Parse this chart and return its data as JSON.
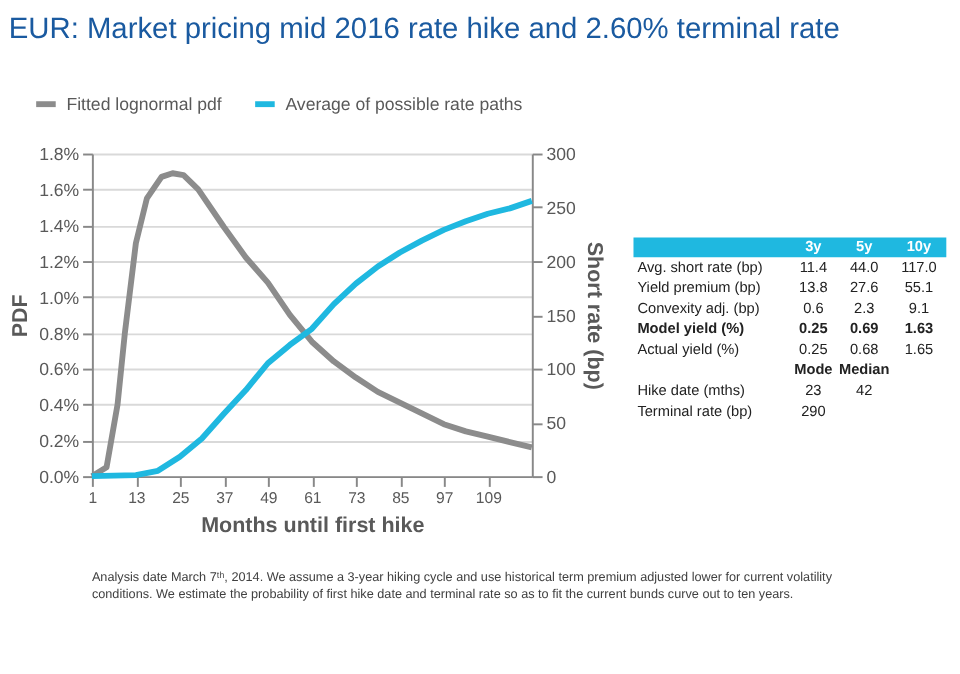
{
  "chart_data": {
    "type": "line",
    "title": "EUR: Market pricing mid 2016 rate hike and 2.60% terminal rate",
    "xlabel": "Months until first hike",
    "ylabel": "PDF",
    "y2label": "Short rate (bp)",
    "series": [
      {
        "name": "Fitted lognormal pdf",
        "color": "#8c8c8c",
        "x": [
          1,
          5,
          8,
          10,
          13,
          16,
          20,
          23,
          26,
          30,
          37,
          43,
          49,
          55,
          61,
          67,
          73,
          79,
          85,
          91,
          97,
          103,
          109,
          115,
          121
        ],
        "values": [
          0,
          0.05,
          0.4,
          0.8,
          1.3,
          1.55,
          1.67,
          1.69,
          1.68,
          1.6,
          1.39,
          1.22,
          1.08,
          0.9,
          0.75,
          0.64,
          0.55,
          0.47,
          0.41,
          0.35,
          0.29,
          0.25,
          0.22,
          0.19,
          0.16
        ]
      },
      {
        "name": "Average of possible rate paths",
        "color": "#1fb8e0",
        "axis": "y2",
        "x": [
          1,
          13,
          19,
          25,
          31,
          37,
          43,
          49,
          55,
          61,
          67,
          73,
          79,
          85,
          91,
          97,
          103,
          109,
          115,
          121
        ],
        "values": [
          0,
          1,
          5,
          18,
          35,
          58,
          80,
          105,
          122,
          137,
          160,
          179,
          195,
          208,
          219,
          229,
          237,
          244,
          249,
          256
        ]
      }
    ],
    "xlim": [
      1,
      121
    ],
    "xticks": [
      1,
      13,
      25,
      37,
      49,
      61,
      73,
      85,
      97,
      109
    ],
    "ylim": [
      0,
      1.8
    ],
    "yticks": [
      {
        "value": 0,
        "label": "0.0%"
      },
      {
        "value": 0.2,
        "label": "0.2%"
      },
      {
        "value": 0.4,
        "label": "0.4%"
      },
      {
        "value": 0.6,
        "label": "0.6%"
      },
      {
        "value": 0.8,
        "label": "0.8%"
      },
      {
        "value": 1.0,
        "label": "1.0%"
      },
      {
        "value": 1.2,
        "label": "1.2%"
      },
      {
        "value": 1.4,
        "label": "1.4%"
      },
      {
        "value": 1.6,
        "label": "1.6%"
      },
      {
        "value": 1.8,
        "label": "1.8%"
      }
    ],
    "y2lim": [
      0,
      300
    ],
    "y2ticks": [
      0,
      50,
      100,
      150,
      200,
      250,
      300
    ],
    "grid": "y",
    "legend": "top left",
    "annotations": [
      "3y",
      "5y",
      "10y",
      "Avg. short rate (bp)",
      "11.4",
      "44.0",
      "117.0",
      "Yield premium (bp)",
      "13.8",
      "27.6",
      "55.1",
      "Convexity adj. (bp)",
      "0.6",
      "2.3",
      "9.1",
      "Model yield (%)",
      "0.25",
      "0.69",
      "1.63",
      "Actual yield (%)",
      "0.25",
      "0.68",
      "1.65",
      "Mode",
      "Median",
      "Hike date (mths)",
      "23",
      "42",
      "Terminal rate (bp)",
      "290",
      "Analysis date March 7ᵗʰ, 2014. We assume a 3-year hiking cycle and use historical term premium adjusted lower for current volatility conditions. We estimate the probability of first hike date and terminal rate so as to fit the current bunds curve out to ten years."
    ]
  }
}
